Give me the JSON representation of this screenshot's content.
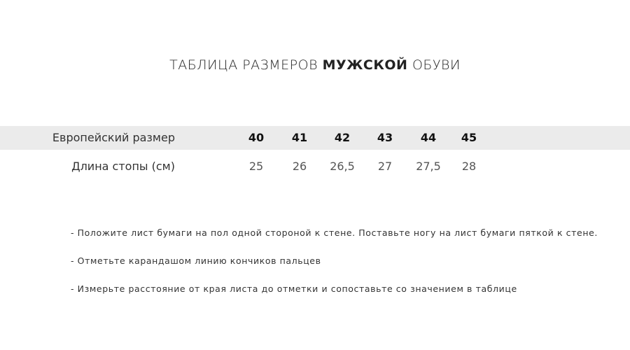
{
  "title": {
    "prefix": "ТАБЛИЦА РАЗМЕРОВ",
    "bold": "МУЖСКОЙ",
    "suffix": "ОБУВИ"
  },
  "table": {
    "rows": [
      {
        "label": "Европейский размер",
        "values": [
          "40",
          "41",
          "42",
          "43",
          "44",
          "45"
        ]
      },
      {
        "label": "Длина стопы (см)",
        "values": [
          "25",
          "26",
          "26,5",
          "27",
          "27,5",
          "28"
        ]
      }
    ]
  },
  "notes": [
    "- Положите лист бумаги на пол одной стороной к стене. Поставьте ногу на лист бумаги пяткой к стене.",
    "- Отметьте карандашом линию кончиков пальцев",
    "- Измерьте расстояние от края листа до отметки и сопоставьте со значением в таблице"
  ]
}
